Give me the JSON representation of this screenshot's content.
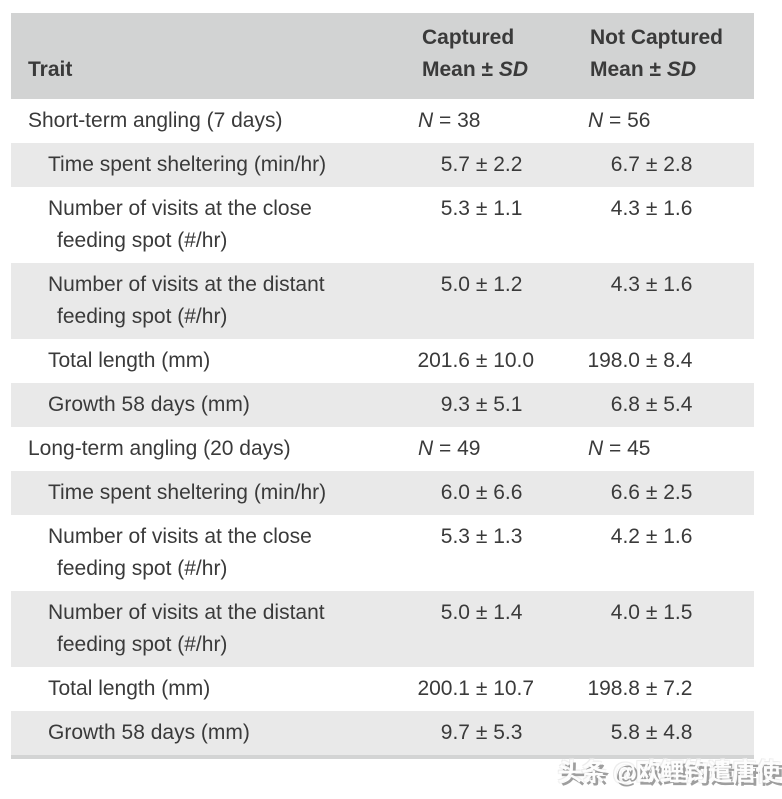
{
  "colors": {
    "header_bg": "#d2d3d3",
    "row_shade_bg": "#e9e9e9",
    "text": "#3a3a3a",
    "table_bottom_border": "#d3d4d4",
    "watermark_shadow": "#9e9e9e"
  },
  "table": {
    "n_letter": "N",
    "eq_sign": "=",
    "pm_sign": "±",
    "header": {
      "trait_label": "Trait",
      "captured_line1": "Captured",
      "not_captured_line1": "Not Captured",
      "mean_prefix": "Mean ± ",
      "sd_label": "SD"
    },
    "rows": [
      {
        "kind": "section",
        "shaded": false,
        "trait_line1": "Short-term angling (7 days)",
        "captured_n": "38",
        "not_captured_n": "56"
      },
      {
        "kind": "data",
        "shaded": true,
        "trait_line1": "Time spent sheltering (min/hr)",
        "captured_mean": "5.7",
        "captured_sd": "2.2",
        "not_captured_mean": "6.7",
        "not_captured_sd": "2.8"
      },
      {
        "kind": "data",
        "shaded": false,
        "trait_line1": "Number of visits at the close",
        "trait_line2": "feeding spot (#/hr)",
        "captured_mean": "5.3",
        "captured_sd": "1.1",
        "not_captured_mean": "4.3",
        "not_captured_sd": "1.6"
      },
      {
        "kind": "data",
        "shaded": true,
        "trait_line1": "Number of visits at the distant",
        "trait_line2": "feeding spot (#/hr)",
        "captured_mean": "5.0",
        "captured_sd": "1.2",
        "not_captured_mean": "4.3",
        "not_captured_sd": "1.6"
      },
      {
        "kind": "data",
        "shaded": false,
        "trait_line1": "Total length (mm)",
        "captured_mean": "201.6",
        "captured_sd": "10.0",
        "not_captured_mean": "198.0",
        "not_captured_sd": "8.4"
      },
      {
        "kind": "data",
        "shaded": true,
        "trait_line1": "Growth 58 days (mm)",
        "captured_mean": "9.3",
        "captured_sd": "5.1",
        "not_captured_mean": "6.8",
        "not_captured_sd": "5.4"
      },
      {
        "kind": "section",
        "shaded": false,
        "trait_line1": "Long-term angling (20 days)",
        "captured_n": "49",
        "not_captured_n": "45"
      },
      {
        "kind": "data",
        "shaded": true,
        "trait_line1": "Time spent sheltering (min/hr)",
        "captured_mean": "6.0",
        "captured_sd": "6.6",
        "not_captured_mean": "6.6",
        "not_captured_sd": "2.5"
      },
      {
        "kind": "data",
        "shaded": false,
        "trait_line1": "Number of visits at the close",
        "trait_line2": "feeding spot (#/hr)",
        "captured_mean": "5.3",
        "captured_sd": "1.3",
        "not_captured_mean": "4.2",
        "not_captured_sd": "1.6"
      },
      {
        "kind": "data",
        "shaded": true,
        "trait_line1": "Number of visits at the distant",
        "trait_line2": "feeding spot (#/hr)",
        "captured_mean": "5.0",
        "captured_sd": "1.4",
        "not_captured_mean": "4.0",
        "not_captured_sd": "1.5"
      },
      {
        "kind": "data",
        "shaded": false,
        "trait_line1": "Total length (mm)",
        "captured_mean": "200.1",
        "captured_sd": "10.7",
        "not_captured_mean": "198.8",
        "not_captured_sd": "7.2"
      },
      {
        "kind": "data",
        "shaded": true,
        "trait_line1": "Growth 58 days (mm)",
        "captured_mean": "9.7",
        "captured_sd": "5.3",
        "not_captured_mean": "5.8",
        "not_captured_sd": "4.8"
      }
    ]
  },
  "chart_data": {
    "type": "table",
    "title": "",
    "columns": [
      "Trait",
      "Captured Mean ± SD",
      "Not Captured Mean ± SD"
    ],
    "rows": [
      [
        "Short-term angling (7 days)",
        "N = 38",
        "N = 56"
      ],
      [
        "Time spent sheltering (min/hr)",
        "5.7 ± 2.2",
        "6.7 ± 2.8"
      ],
      [
        "Number of visits at the close feeding spot (#/hr)",
        "5.3 ± 1.1",
        "4.3 ± 1.6"
      ],
      [
        "Number of visits at the distant feeding spot (#/hr)",
        "5.0 ± 1.2",
        "4.3 ± 1.6"
      ],
      [
        "Total length (mm)",
        "201.6 ± 10.0",
        "198.0 ± 8.4"
      ],
      [
        "Growth 58 days (mm)",
        "9.3 ± 5.1",
        "6.8 ± 5.4"
      ],
      [
        "Long-term angling (20 days)",
        "N = 49",
        "N = 45"
      ],
      [
        "Time spent sheltering (min/hr)",
        "6.0 ± 6.6",
        "6.6 ± 2.5"
      ],
      [
        "Number of visits at the close feeding spot (#/hr)",
        "5.3 ± 1.3",
        "4.2 ± 1.6"
      ],
      [
        "Number of visits at the distant feeding spot (#/hr)",
        "5.0 ± 1.4",
        "4.0 ± 1.5"
      ],
      [
        "Total length (mm)",
        "200.1 ± 10.7",
        "198.8 ± 7.2"
      ],
      [
        "Growth 58 days (mm)",
        "9.7 ± 5.3",
        "5.8 ± 4.8"
      ]
    ]
  },
  "watermark": {
    "text": "头条 @欧鲤钓遣唐使"
  }
}
